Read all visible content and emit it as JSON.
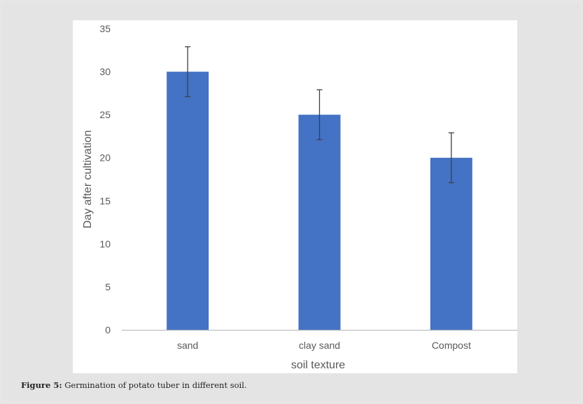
{
  "caption": {
    "label": "Figure 5:",
    "text": " Germination of potato tuber in different soil."
  },
  "colors": {
    "bar": "#4472c4",
    "error_bar": "#3f3f3f",
    "axis_line": "#bfbfbf",
    "text": "#595959"
  },
  "chart_data": {
    "type": "bar",
    "categories": [
      "sand",
      "clay sand",
      "Compost"
    ],
    "values": [
      30,
      25,
      20
    ],
    "error": [
      2.9,
      2.9,
      2.9
    ],
    "xlabel": "soil texture",
    "ylabel": "Day after cultivation",
    "ylim": [
      0,
      35
    ],
    "yticks": [
      0,
      5,
      10,
      15,
      20,
      25,
      30,
      35
    ],
    "grid": false,
    "legend": "none"
  }
}
